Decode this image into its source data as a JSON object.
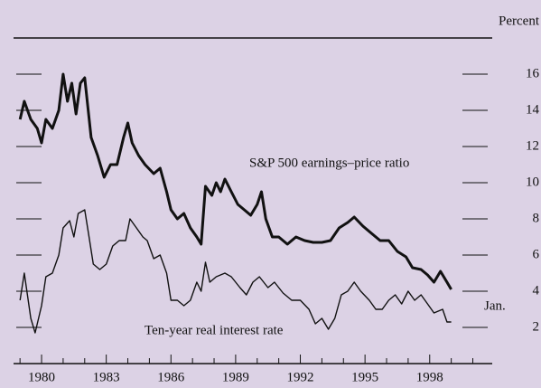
{
  "chart_data": {
    "type": "line",
    "unit_label": "Percent",
    "annotations": [
      "S&P 500 earnings–price ratio",
      "Ten-year real interest rate",
      "Jan."
    ],
    "xlim": [
      1978.7,
      2000.9
    ],
    "ylim": [
      0,
      18
    ],
    "xticks": [
      1980,
      1983,
      1986,
      1989,
      1992,
      1995,
      1998
    ],
    "xminorticks": [
      1979,
      1981,
      1982,
      1984,
      1985,
      1987,
      1988,
      1990,
      1991,
      1993,
      1994,
      1996,
      1997,
      1999,
      2000
    ],
    "yticks": [
      2,
      4,
      6,
      8,
      10,
      12,
      14,
      16
    ],
    "background": "#dcd2e5",
    "series": [
      {
        "name": "S&P 500 earnings–price ratio",
        "color": "#111111",
        "width": 3,
        "x": [
          1979.0,
          1979.2,
          1979.5,
          1979.8,
          1980.0,
          1980.2,
          1980.5,
          1980.8,
          1981.0,
          1981.2,
          1981.4,
          1981.6,
          1981.8,
          1982.0,
          1982.3,
          1982.6,
          1982.9,
          1983.2,
          1983.5,
          1983.8,
          1984.0,
          1984.2,
          1984.5,
          1984.8,
          1985.2,
          1985.5,
          1985.8,
          1986.0,
          1986.3,
          1986.6,
          1986.9,
          1987.2,
          1987.4,
          1987.6,
          1987.9,
          1988.1,
          1988.3,
          1988.5,
          1988.8,
          1989.1,
          1989.4,
          1989.7,
          1990.0,
          1990.2,
          1990.4,
          1990.7,
          1991.0,
          1991.4,
          1991.8,
          1992.2,
          1992.6,
          1993.0,
          1993.4,
          1993.8,
          1994.2,
          1994.5,
          1994.9,
          1995.3,
          1995.7,
          1996.1,
          1996.5,
          1996.9,
          1997.2,
          1997.6,
          1997.9,
          1998.2,
          1998.5,
          1998.8,
          1999.0
        ],
        "values": [
          13.5,
          14.5,
          13.5,
          13.0,
          12.2,
          13.5,
          13.0,
          14.0,
          16.0,
          14.5,
          15.5,
          13.8,
          15.5,
          15.8,
          12.5,
          11.5,
          10.3,
          11.0,
          11.0,
          12.5,
          13.3,
          12.2,
          11.5,
          11.0,
          10.5,
          10.8,
          9.5,
          8.5,
          8.0,
          8.3,
          7.5,
          7.0,
          6.6,
          9.8,
          9.3,
          10.0,
          9.5,
          10.2,
          9.5,
          8.8,
          8.5,
          8.2,
          8.8,
          9.5,
          8.0,
          7.0,
          7.0,
          6.6,
          7.0,
          6.8,
          6.7,
          6.7,
          6.8,
          7.5,
          7.8,
          8.1,
          7.6,
          7.2,
          6.8,
          6.8,
          6.2,
          5.9,
          5.3,
          5.2,
          4.9,
          4.5,
          5.1,
          4.5,
          4.1
        ]
      },
      {
        "name": "Ten-year real interest rate",
        "color": "#111111",
        "width": 1.4,
        "x": [
          1979.0,
          1979.2,
          1979.5,
          1979.7,
          1980.0,
          1980.2,
          1980.5,
          1980.8,
          1981.0,
          1981.3,
          1981.5,
          1981.7,
          1982.0,
          1982.2,
          1982.4,
          1982.7,
          1983.0,
          1983.3,
          1983.6,
          1983.9,
          1984.1,
          1984.4,
          1984.7,
          1984.9,
          1985.2,
          1985.5,
          1985.8,
          1986.0,
          1986.3,
          1986.6,
          1986.9,
          1987.2,
          1987.4,
          1987.6,
          1987.8,
          1988.1,
          1988.5,
          1988.8,
          1989.2,
          1989.5,
          1989.8,
          1990.1,
          1990.5,
          1990.8,
          1991.2,
          1991.6,
          1992.0,
          1992.4,
          1992.7,
          1993.0,
          1993.3,
          1993.6,
          1993.9,
          1994.2,
          1994.5,
          1994.8,
          1995.2,
          1995.5,
          1995.8,
          1996.1,
          1996.4,
          1996.7,
          1997.0,
          1997.3,
          1997.6,
          1997.9,
          1998.2,
          1998.6,
          1998.8,
          1999.0
        ],
        "values": [
          3.5,
          5.0,
          2.5,
          1.7,
          3.2,
          4.8,
          5.0,
          6.0,
          7.5,
          7.9,
          7.0,
          8.3,
          8.5,
          7.0,
          5.5,
          5.2,
          5.5,
          6.5,
          6.8,
          6.8,
          8.0,
          7.5,
          7.0,
          6.8,
          5.8,
          6.0,
          5.0,
          3.5,
          3.5,
          3.2,
          3.5,
          4.5,
          4.0,
          5.6,
          4.5,
          4.8,
          5.0,
          4.8,
          4.2,
          3.8,
          4.5,
          4.8,
          4.2,
          4.5,
          3.9,
          3.5,
          3.5,
          3.0,
          2.2,
          2.5,
          1.9,
          2.5,
          3.8,
          4.0,
          4.5,
          4.0,
          3.5,
          3.0,
          3.0,
          3.5,
          3.8,
          3.3,
          4.0,
          3.5,
          3.8,
          3.3,
          2.8,
          3.0,
          2.3,
          2.3
        ]
      }
    ]
  }
}
